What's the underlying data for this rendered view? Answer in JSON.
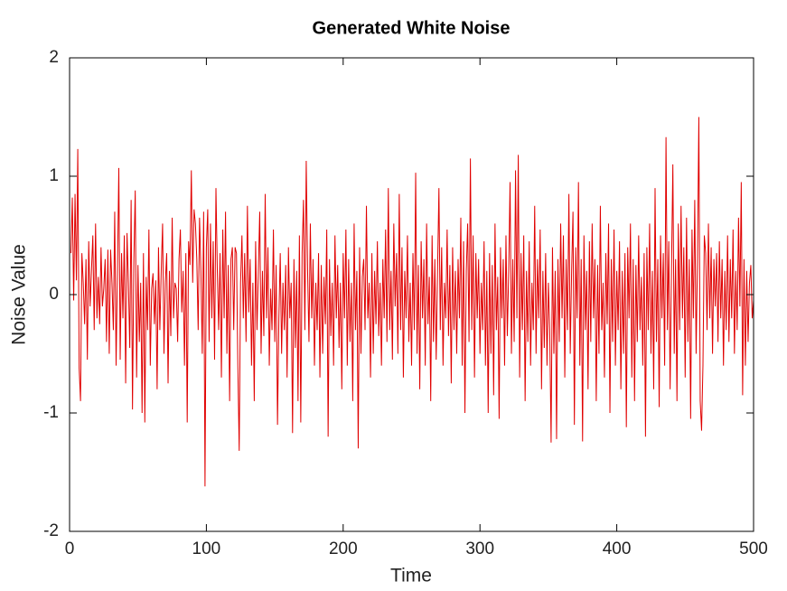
{
  "chart_data": {
    "type": "line",
    "title": "Generated White Noise",
    "xlabel": "Time",
    "ylabel": "Noise Value",
    "xlim": [
      0,
      500
    ],
    "xticks": [
      0,
      100,
      200,
      300,
      400,
      500
    ],
    "ylim": [
      -2,
      2
    ],
    "yticks": [
      -2,
      -1,
      0,
      1,
      2
    ],
    "x": [
      1,
      2,
      3,
      4,
      5,
      6,
      7,
      8,
      9,
      10,
      11,
      12,
      13,
      14,
      15,
      16,
      17,
      18,
      19,
      20,
      21,
      22,
      23,
      24,
      25,
      26,
      27,
      28,
      29,
      30,
      31,
      32,
      33,
      34,
      35,
      36,
      37,
      38,
      39,
      40,
      41,
      42,
      43,
      44,
      45,
      46,
      47,
      48,
      49,
      50,
      51,
      52,
      53,
      54,
      55,
      56,
      57,
      58,
      59,
      60,
      61,
      62,
      63,
      64,
      65,
      66,
      67,
      68,
      69,
      70,
      71,
      72,
      73,
      74,
      75,
      76,
      77,
      78,
      79,
      80,
      81,
      82,
      83,
      84,
      85,
      86,
      87,
      88,
      89,
      90,
      91,
      92,
      93,
      94,
      95,
      96,
      97,
      98,
      99,
      100,
      101,
      102,
      103,
      104,
      105,
      106,
      107,
      108,
      109,
      110,
      111,
      112,
      113,
      114,
      115,
      116,
      117,
      118,
      119,
      120,
      121,
      122,
      123,
      124,
      125,
      126,
      127,
      128,
      129,
      130,
      131,
      132,
      133,
      134,
      135,
      136,
      137,
      138,
      139,
      140,
      141,
      142,
      143,
      144,
      145,
      146,
      147,
      148,
      149,
      150,
      151,
      152,
      153,
      154,
      155,
      156,
      157,
      158,
      159,
      160,
      161,
      162,
      163,
      164,
      165,
      166,
      167,
      168,
      169,
      170,
      171,
      172,
      173,
      174,
      175,
      176,
      177,
      178,
      179,
      180,
      181,
      182,
      183,
      184,
      185,
      186,
      187,
      188,
      189,
      190,
      191,
      192,
      193,
      194,
      195,
      196,
      197,
      198,
      199,
      200,
      201,
      202,
      203,
      204,
      205,
      206,
      207,
      208,
      209,
      210,
      211,
      212,
      213,
      214,
      215,
      216,
      217,
      218,
      219,
      220,
      221,
      222,
      223,
      224,
      225,
      226,
      227,
      228,
      229,
      230,
      231,
      232,
      233,
      234,
      235,
      236,
      237,
      238,
      239,
      240,
      241,
      242,
      243,
      244,
      245,
      246,
      247,
      248,
      249,
      250,
      251,
      252,
      253,
      254,
      255,
      256,
      257,
      258,
      259,
      260,
      261,
      262,
      263,
      264,
      265,
      266,
      267,
      268,
      269,
      270,
      271,
      272,
      273,
      274,
      275,
      276,
      277,
      278,
      279,
      280,
      281,
      282,
      283,
      284,
      285,
      286,
      287,
      288,
      289,
      290,
      291,
      292,
      293,
      294,
      295,
      296,
      297,
      298,
      299,
      300,
      301,
      302,
      303,
      304,
      305,
      306,
      307,
      308,
      309,
      310,
      311,
      312,
      313,
      314,
      315,
      316,
      317,
      318,
      319,
      320,
      321,
      322,
      323,
      324,
      325,
      326,
      327,
      328,
      329,
      330,
      331,
      332,
      333,
      334,
      335,
      336,
      337,
      338,
      339,
      340,
      341,
      342,
      343,
      344,
      345,
      346,
      347,
      348,
      349,
      350,
      351,
      352,
      353,
      354,
      355,
      356,
      357,
      358,
      359,
      360,
      361,
      362,
      363,
      364,
      365,
      366,
      367,
      368,
      369,
      370,
      371,
      372,
      373,
      374,
      375,
      376,
      377,
      378,
      379,
      380,
      381,
      382,
      383,
      384,
      385,
      386,
      387,
      388,
      389,
      390,
      391,
      392,
      393,
      394,
      395,
      396,
      397,
      398,
      399,
      400,
      401,
      402,
      403,
      404,
      405,
      406,
      407,
      408,
      409,
      410,
      411,
      412,
      413,
      414,
      415,
      416,
      417,
      418,
      419,
      420,
      421,
      422,
      423,
      424,
      425,
      426,
      427,
      428,
      429,
      430,
      431,
      432,
      433,
      434,
      435,
      436,
      437,
      438,
      439,
      440,
      441,
      442,
      443,
      444,
      445,
      446,
      447,
      448,
      449,
      450,
      451,
      452,
      453,
      454,
      455,
      456,
      457,
      458,
      459,
      460,
      461,
      462,
      463,
      464,
      465,
      466,
      467,
      468,
      469,
      470,
      471,
      472,
      473,
      474,
      475,
      476,
      477,
      478,
      479,
      480,
      481,
      482,
      483,
      484,
      485,
      486,
      487,
      488,
      489,
      490,
      491,
      492,
      493,
      494,
      495,
      496,
      497,
      498,
      499,
      500
    ],
    "series": [
      {
        "color": "#e00000",
        "values": [
          0.35,
          0.82,
          -0.05,
          0.85,
          0.12,
          1.23,
          -0.62,
          -0.9,
          0.35,
          0.1,
          -0.25,
          0.3,
          -0.55,
          0.45,
          -0.1,
          0.2,
          0.5,
          -0.3,
          0.6,
          -0.2,
          0.15,
          -0.25,
          0.4,
          -0.1,
          0.05,
          0.3,
          -0.4,
          0.38,
          -0.5,
          0.38,
          0.1,
          -0.3,
          0.7,
          -0.6,
          0.2,
          1.07,
          -0.55,
          0.35,
          -0.2,
          0.5,
          -0.75,
          0.52,
          0.1,
          -0.45,
          0.8,
          -0.97,
          0.3,
          0.88,
          -0.7,
          0.25,
          -0.4,
          0.1,
          -1.0,
          0.35,
          -1.08,
          0.15,
          -0.3,
          0.55,
          -0.6,
          0.05,
          0.18,
          -0.25,
          0.12,
          -0.8,
          0.4,
          -0.3,
          0.2,
          0.6,
          -0.5,
          0.1,
          0.35,
          -0.75,
          0.2,
          -0.35,
          0.65,
          -0.2,
          0.1,
          0.05,
          -0.4,
          0.3,
          0.55,
          -0.15,
          0.2,
          -0.6,
          0.35,
          -1.08,
          0.45,
          0.25,
          1.05,
          0.1,
          0.72,
          0.6,
          0.3,
          -0.3,
          0.65,
          0.2,
          -0.5,
          0.7,
          -1.62,
          0.4,
          0.72,
          -0.4,
          0.6,
          -0.2,
          0.45,
          -0.55,
          0.9,
          0.2,
          -0.3,
          0.35,
          -0.7,
          0.55,
          -0.2,
          0.7,
          -0.5,
          0.25,
          -0.9,
          0.3,
          0.4,
          -0.3,
          0.4,
          0.35,
          -0.6,
          -1.32,
          0.1,
          0.5,
          -0.2,
          0.35,
          -0.4,
          0.75,
          -0.15,
          0.3,
          -0.6,
          0.1,
          -0.9,
          0.45,
          -0.3,
          0.2,
          0.7,
          -0.5,
          0.2,
          -0.35,
          0.85,
          -0.2,
          0.4,
          -0.6,
          0.05,
          -0.3,
          0.55,
          -0.4,
          0.25,
          -1.1,
          -0.2,
          0.35,
          -0.5,
          0.1,
          -0.3,
          0.25,
          -0.7,
          0.4,
          -0.2,
          0.1,
          -1.17,
          0.3,
          -0.45,
          0.2,
          -0.9,
          0.5,
          -1.08,
          0.35,
          0.8,
          -0.3,
          1.13,
          0.2,
          -0.4,
          0.6,
          -0.2,
          0.3,
          -0.6,
          0.1,
          -0.3,
          0.35,
          -0.7,
          0.25,
          -0.5,
          0.15,
          -0.25,
          0.55,
          -1.2,
          0.3,
          -0.35,
          0.1,
          -0.6,
          0.5,
          -0.2,
          0.25,
          -0.45,
          0.1,
          -0.8,
          0.35,
          -0.2,
          0.55,
          -0.6,
          0.3,
          -0.4,
          0.1,
          -0.9,
          0.6,
          -0.3,
          0.2,
          -1.3,
          0.4,
          -0.5,
          0.15,
          0.3,
          -0.3,
          0.75,
          -0.2,
          0.1,
          -0.7,
          0.35,
          -0.5,
          0.2,
          -0.25,
          0.45,
          -0.35,
          0.1,
          -0.6,
          0.3,
          -0.2,
          0.55,
          -0.4,
          0.9,
          -0.3,
          0.2,
          -0.55,
          0.6,
          -0.1,
          0.35,
          -0.5,
          0.85,
          -0.3,
          0.4,
          -0.7,
          0.2,
          -0.2,
          0.5,
          -0.4,
          0.1,
          -0.6,
          0.35,
          -0.3,
          1.03,
          -0.5,
          0.25,
          -0.8,
          0.45,
          -0.2,
          0.3,
          -0.6,
          0.6,
          -0.25,
          0.15,
          -0.9,
          0.5,
          -0.4,
          0.3,
          -0.55,
          0.2,
          0.9,
          -0.3,
          0.4,
          -0.6,
          0.1,
          -0.2,
          0.55,
          -0.35,
          0.25,
          -0.75,
          0.4,
          -0.3,
          0.2,
          -0.5,
          0.3,
          -0.2,
          0.65,
          -0.6,
          0.45,
          -1.0,
          0.2,
          0.6,
          -0.4,
          1.15,
          -0.3,
          0.5,
          -0.7,
          0.35,
          -0.2,
          0.3,
          -0.5,
          0.1,
          -0.3,
          0.45,
          -0.6,
          0.2,
          -1.0,
          0.35,
          -0.5,
          0.25,
          -0.85,
          0.6,
          -0.3,
          0.15,
          -1.05,
          0.4,
          -0.2,
          0.3,
          -0.6,
          0.5,
          -0.35,
          0.2,
          0.95,
          -0.5,
          0.3,
          -0.4,
          1.05,
          -0.2,
          1.18,
          -0.7,
          0.35,
          -0.3,
          0.5,
          -0.9,
          0.2,
          -0.4,
          0.45,
          -0.6,
          0.1,
          -0.3,
          0.75,
          -0.5,
          0.3,
          -0.2,
          0.55,
          -0.8,
          0.2,
          -0.45,
          0.35,
          -0.6,
          0.1,
          -0.3,
          -1.25,
          0.4,
          -0.5,
          0.2,
          -1.22,
          0.3,
          -0.4,
          0.6,
          -0.2,
          0.5,
          -0.7,
          0.3,
          -0.3,
          0.85,
          -0.5,
          0.2,
          0.7,
          -1.1,
          0.4,
          -0.2,
          0.95,
          -0.6,
          0.3,
          -1.24,
          0.5,
          -0.3,
          0.2,
          -0.8,
          0.45,
          -0.4,
          0.6,
          -0.2,
          0.3,
          -0.9,
          0.25,
          -0.5,
          0.75,
          -0.3,
          0.1,
          -0.7,
          0.35,
          -0.25,
          0.6,
          -1.0,
          0.3,
          -0.4,
          0.55,
          -0.6,
          0.2,
          -0.3,
          0.45,
          -0.8,
          0.2,
          -0.5,
          0.35,
          -1.12,
          0.4,
          -0.2,
          0.6,
          -0.7,
          0.3,
          -0.9,
          0.25,
          -0.4,
          0.5,
          -0.3,
          0.15,
          -0.6,
          0.35,
          -1.2,
          0.4,
          -0.3,
          0.6,
          -0.5,
          0.2,
          -0.8,
          0.9,
          -0.4,
          0.3,
          -0.95,
          0.5,
          -0.2,
          0.35,
          -0.6,
          1.33,
          -0.3,
          0.45,
          -0.8,
          0.2,
          1.1,
          -0.5,
          0.3,
          -0.9,
          0.6,
          -0.3,
          0.75,
          -0.2,
          0.4,
          -0.7,
          0.65,
          -0.4,
          0.3,
          -1.05,
          0.55,
          -0.2,
          0.8,
          -0.5,
          0.3,
          1.5,
          -0.9,
          -1.15,
          -0.6,
          0.5,
          0.35,
          -0.3,
          0.6,
          -0.2,
          0.4,
          -0.5,
          0.3,
          -0.1,
          0.35,
          -0.4,
          0.45,
          -0.2,
          0.3,
          -0.6,
          0.2,
          -0.3,
          0.5,
          -0.4,
          0.3,
          -0.2,
          0.55,
          -0.5,
          0.2,
          -0.3,
          0.65,
          -0.1,
          0.95,
          -0.85,
          0.3,
          -0.6,
          0.2,
          -0.4,
          0.1,
          0.25,
          -0.2,
          -0.05
        ]
      }
    ]
  }
}
